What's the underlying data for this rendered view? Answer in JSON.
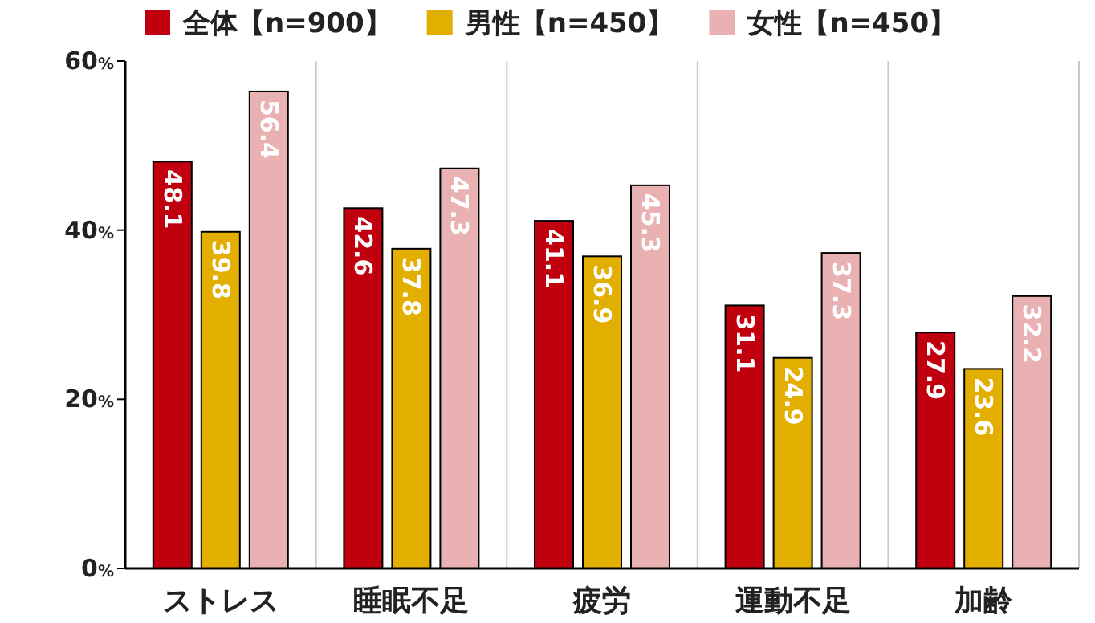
{
  "chart_data": {
    "type": "bar",
    "categories": [
      "ストレス",
      "睡眠不足",
      "疲労",
      "運動不足",
      "加齢"
    ],
    "series": [
      {
        "name": "全体【n=900】",
        "color": "#c1000f",
        "values": [
          48.1,
          42.6,
          41.1,
          31.1,
          27.9
        ]
      },
      {
        "name": "男性【n=450】",
        "color": "#e2ae00",
        "values": [
          39.8,
          37.8,
          36.9,
          24.9,
          23.6
        ]
      },
      {
        "name": "女性【n=450】",
        "color": "#e9b1b1",
        "values": [
          56.4,
          47.3,
          45.3,
          37.3,
          32.2
        ]
      }
    ],
    "ylim": [
      0,
      60
    ],
    "yticks": [
      {
        "value": 0,
        "label": "0%"
      },
      {
        "value": 20,
        "label": "20%"
      },
      {
        "value": 40,
        "label": "40%"
      },
      {
        "value": 60,
        "label": "60%"
      }
    ],
    "grid": "x",
    "legend": "top",
    "data_labels": true
  }
}
